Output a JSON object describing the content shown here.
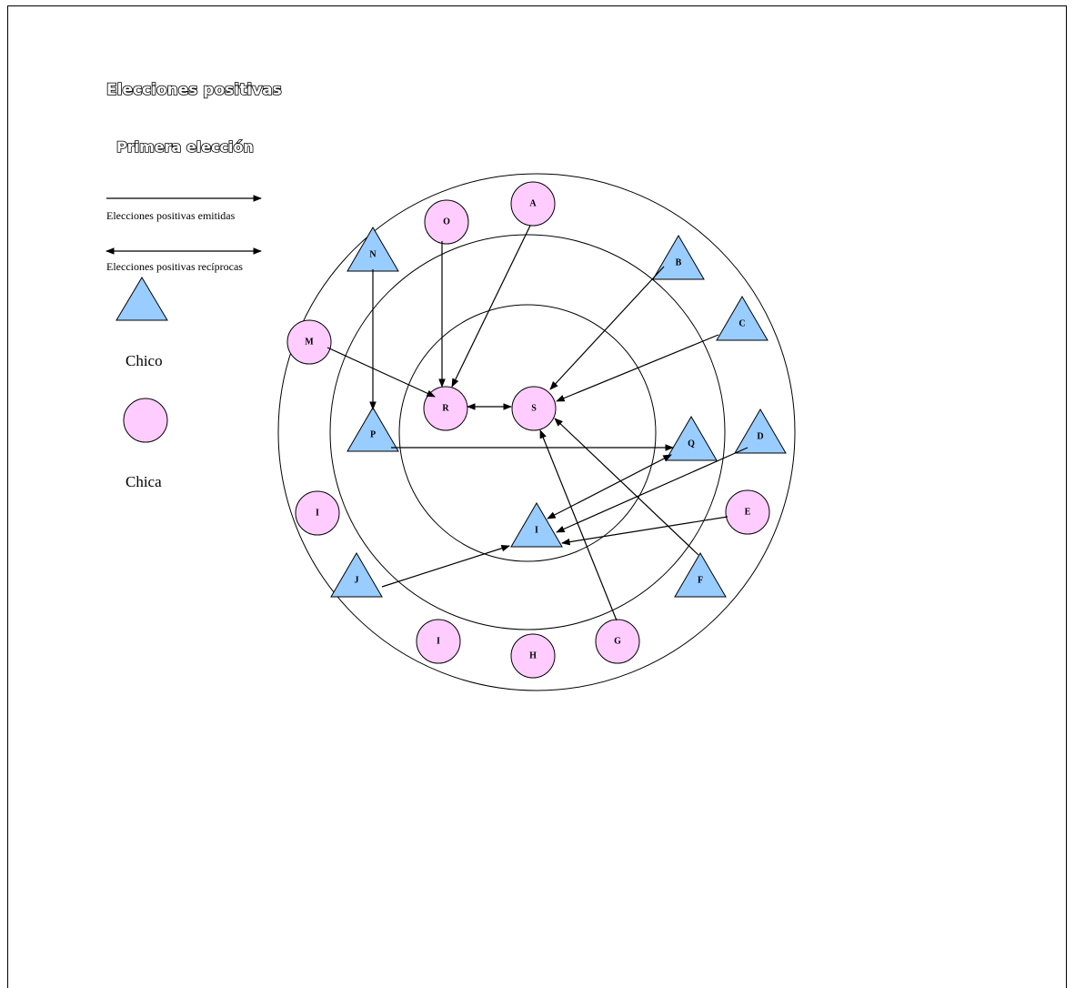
{
  "header": {
    "title": "Elecciones positivas",
    "subtitle": "Primera elección"
  },
  "legend": {
    "emitted": "Elecciones positivas emitidas",
    "reciprocal": "Elecciones positivas recíprocas",
    "boy": "Chico",
    "girl": "Chica"
  },
  "nodes": [
    {
      "label": "A"
    },
    {
      "label": "O"
    },
    {
      "label": "N"
    },
    {
      "label": "B"
    },
    {
      "label": "C"
    },
    {
      "label": "M"
    },
    {
      "label": "R"
    },
    {
      "label": "S"
    },
    {
      "label": "P"
    },
    {
      "label": "Q"
    },
    {
      "label": "D"
    },
    {
      "label": "I"
    },
    {
      "label": "E"
    },
    {
      "label": "I"
    },
    {
      "label": "J"
    },
    {
      "label": "F"
    },
    {
      "label": "I"
    },
    {
      "label": "H"
    },
    {
      "label": "G"
    }
  ]
}
